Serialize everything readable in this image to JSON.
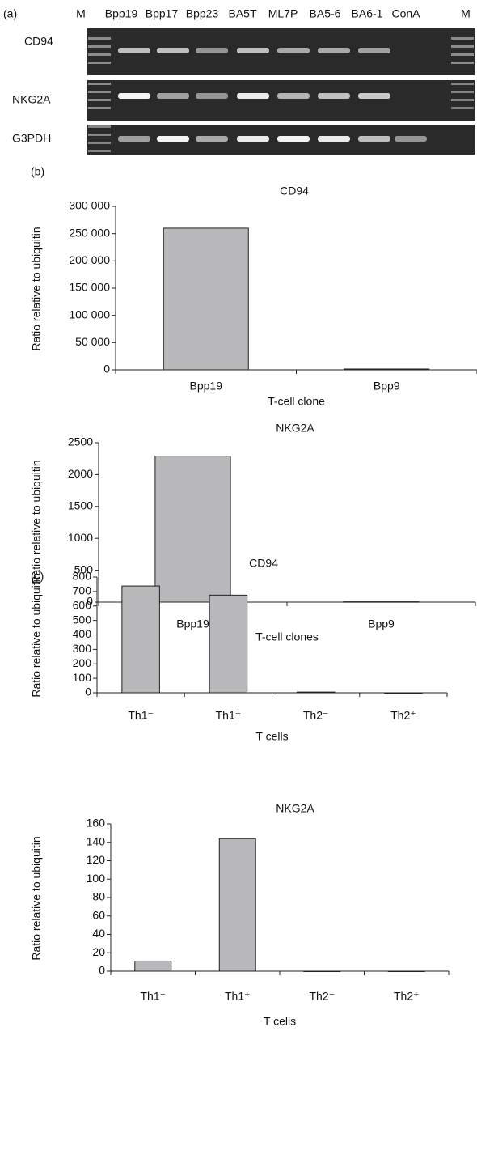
{
  "gel": {
    "panel_label": "(a)",
    "lanes": [
      "M",
      "Bpp19",
      "Bpp17",
      "Bpp23",
      "BA5T",
      "ML7P",
      "BA5-6",
      "BA6-1",
      "ConA",
      "M"
    ],
    "rows": [
      "CD94",
      "NKG2A",
      "G3PDH"
    ]
  },
  "chart_data": [
    {
      "type": "bar",
      "panel_label": "(b)",
      "title": "CD94",
      "x_label": "T-cell clone",
      "y_label": "Ratio relative to ubiquitin",
      "categories": [
        "Bpp19",
        "Bpp9"
      ],
      "values": [
        260000,
        1500
      ],
      "color": "#b8b8ba",
      "ylim": [
        0,
        300000
      ],
      "yticks": [
        {
          "value": 0,
          "label": "0"
        },
        {
          "value": 50000,
          "label": "50 000"
        },
        {
          "value": 100000,
          "label": "100 000"
        },
        {
          "value": 150000,
          "label": "150 000"
        },
        {
          "value": 200000,
          "label": "200 000"
        },
        {
          "value": 250000,
          "label": "250 000"
        },
        {
          "value": 300000,
          "label": "300 000"
        }
      ]
    },
    {
      "type": "bar",
      "title": "NKG2A",
      "x_label": "T-cell clones",
      "y_label": "Ratio relative to ubiquitin",
      "categories": [
        "Bpp19",
        "Bpp9"
      ],
      "values": [
        2290,
        5
      ],
      "color": "#b8b8ba",
      "ylim": [
        0,
        2500
      ],
      "yticks": [
        0,
        500,
        1000,
        1500,
        2000,
        2500
      ]
    },
    {
      "type": "bar",
      "panel_label": "(c)",
      "title": "CD94",
      "x_label": "T cells",
      "y_label": "Ratio relative to ubiquitin",
      "categories": [
        "Th1⁻",
        "Th1⁺",
        "Th2⁻",
        "Th2⁺"
      ],
      "values": [
        738,
        675,
        5,
        0
      ],
      "color": "#b8b8ba",
      "ylim": [
        0,
        800
      ],
      "yticks": [
        0,
        100,
        200,
        300,
        400,
        500,
        600,
        700,
        800
      ]
    },
    {
      "type": "bar",
      "title": "NKG2A",
      "x_label": "T cells",
      "y_label": "Ratio relative to ubiquitin",
      "categories": [
        "Th1⁻",
        "Th1⁺",
        "Th2⁻",
        "Th2⁺"
      ],
      "values": [
        11,
        144,
        0,
        0
      ],
      "color": "#b8b8ba",
      "ylim": [
        0,
        160
      ],
      "yticks": [
        0,
        20,
        40,
        60,
        80,
        100,
        120,
        140,
        160
      ]
    }
  ]
}
